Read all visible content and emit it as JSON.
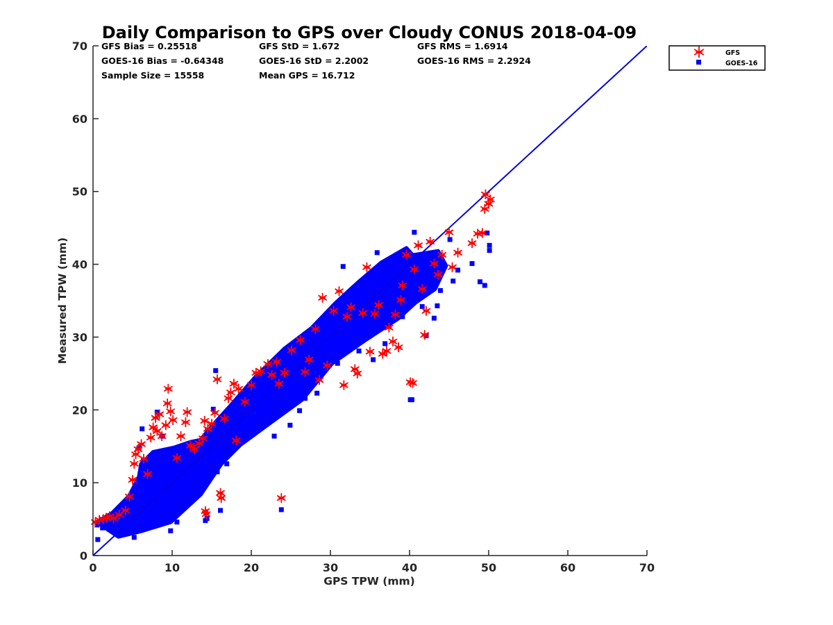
{
  "chart_data": {
    "type": "scatter",
    "title": "Daily Comparison to GPS over Cloudy CONUS 2018-04-09",
    "xlabel": "GPS TPW (mm)",
    "ylabel": "Measured TPW (mm)",
    "xlim": [
      0,
      70
    ],
    "ylim": [
      0,
      70
    ],
    "xticks": [
      "0",
      "10",
      "20",
      "30",
      "40",
      "50",
      "60",
      "70"
    ],
    "yticks": [
      "0",
      "10",
      "20",
      "30",
      "40",
      "50",
      "60",
      "70"
    ],
    "grid": false,
    "legend_position": "top-right-outside",
    "reference_line": {
      "x": [
        0,
        70
      ],
      "y": [
        0,
        70
      ],
      "color": "#0000e0"
    },
    "stats": [
      "GFS Bias = 0.25518",
      "GFS StD = 1.672",
      "GFS RMS = 1.6914",
      "GOES-16 Bias = -0.64348",
      "GOES-16 StD = 2.2002",
      "GOES-16 RMS = 2.2924",
      "Sample Size = 15558",
      "Mean GPS = 16.712"
    ],
    "series": [
      {
        "name": "GFS",
        "marker": "asterisk",
        "color": "#ff0000",
        "points": [
          [
            0.3,
            4.6
          ],
          [
            0.8,
            4.9
          ],
          [
            1.3,
            5.0
          ],
          [
            1.7,
            5.2
          ],
          [
            2.1,
            5.4
          ],
          [
            2.6,
            5.1
          ],
          [
            3.3,
            5.6
          ],
          [
            4.1,
            6.2
          ],
          [
            4.6,
            8.1
          ],
          [
            5.0,
            10.4
          ],
          [
            5.2,
            12.6
          ],
          [
            5.4,
            13.9
          ],
          [
            5.7,
            14.6
          ],
          [
            6.1,
            15.3
          ],
          [
            6.4,
            13.3
          ],
          [
            6.9,
            11.2
          ],
          [
            7.3,
            16.2
          ],
          [
            7.6,
            17.6
          ],
          [
            7.9,
            18.9
          ],
          [
            8.1,
            17.1
          ],
          [
            8.4,
            19.4
          ],
          [
            8.7,
            16.4
          ],
          [
            9.2,
            17.9
          ],
          [
            9.4,
            20.9
          ],
          [
            9.5,
            22.9
          ],
          [
            9.8,
            19.8
          ],
          [
            10.1,
            18.6
          ],
          [
            10.6,
            13.4
          ],
          [
            11.1,
            16.4
          ],
          [
            11.7,
            18.3
          ],
          [
            11.9,
            19.7
          ],
          [
            12.3,
            15.1
          ],
          [
            12.8,
            14.6
          ],
          [
            13.4,
            15.4
          ],
          [
            13.9,
            16.1
          ],
          [
            14.1,
            18.5
          ],
          [
            14.2,
            6.1
          ],
          [
            14.3,
            5.7
          ],
          [
            14.5,
            17.4
          ],
          [
            15.0,
            18.1
          ],
          [
            15.4,
            19.6
          ],
          [
            15.7,
            24.2
          ],
          [
            16.1,
            8.6
          ],
          [
            16.2,
            7.9
          ],
          [
            16.6,
            18.8
          ],
          [
            17.1,
            21.6
          ],
          [
            17.4,
            22.4
          ],
          [
            17.8,
            23.6
          ],
          [
            18.1,
            15.8
          ],
          [
            18.4,
            22.9
          ],
          [
            19.2,
            21.1
          ],
          [
            20.0,
            23.4
          ],
          [
            20.6,
            25.1
          ],
          [
            21.2,
            25.3
          ],
          [
            22.1,
            26.3
          ],
          [
            22.6,
            24.8
          ],
          [
            23.2,
            26.6
          ],
          [
            23.5,
            23.6
          ],
          [
            23.8,
            7.9
          ],
          [
            24.2,
            25.1
          ],
          [
            25.1,
            28.2
          ],
          [
            26.2,
            29.6
          ],
          [
            26.8,
            25.2
          ],
          [
            27.3,
            26.9
          ],
          [
            28.1,
            31.1
          ],
          [
            28.6,
            24.1
          ],
          [
            29.0,
            35.4
          ],
          [
            29.6,
            26.1
          ],
          [
            30.4,
            33.6
          ],
          [
            31.1,
            36.3
          ],
          [
            31.7,
            23.4
          ],
          [
            32.1,
            32.8
          ],
          [
            32.6,
            34.1
          ],
          [
            33.1,
            25.6
          ],
          [
            33.4,
            25.0
          ],
          [
            34.1,
            33.3
          ],
          [
            34.6,
            39.6
          ],
          [
            35.0,
            28.0
          ],
          [
            35.6,
            33.2
          ],
          [
            36.1,
            34.4
          ],
          [
            36.6,
            27.7
          ],
          [
            37.1,
            28.1
          ],
          [
            37.4,
            31.3
          ],
          [
            37.9,
            29.4
          ],
          [
            38.2,
            33.1
          ],
          [
            38.6,
            28.6
          ],
          [
            38.9,
            35.1
          ],
          [
            39.1,
            37.1
          ],
          [
            39.6,
            41.3
          ],
          [
            40.1,
            23.8
          ],
          [
            40.4,
            23.7
          ],
          [
            40.6,
            39.3
          ],
          [
            41.1,
            42.6
          ],
          [
            41.6,
            36.6
          ],
          [
            41.9,
            30.3
          ],
          [
            42.1,
            33.6
          ],
          [
            42.6,
            43.1
          ],
          [
            43.1,
            40.1
          ],
          [
            43.6,
            38.6
          ],
          [
            44.1,
            41.3
          ],
          [
            45.0,
            44.4
          ],
          [
            45.4,
            39.6
          ],
          [
            46.1,
            41.6
          ],
          [
            47.9,
            42.9
          ],
          [
            48.6,
            44.2
          ],
          [
            49.2,
            44.3
          ],
          [
            49.5,
            47.6
          ],
          [
            49.6,
            49.6
          ],
          [
            50.0,
            48.3
          ],
          [
            50.2,
            48.9
          ]
        ]
      },
      {
        "name": "GOES-16",
        "marker": "square",
        "color": "#0000ff",
        "points": [
          [
            0.5,
            4.2
          ],
          [
            0.6,
            2.2
          ],
          [
            1.2,
            3.8
          ],
          [
            2.0,
            4.1
          ],
          [
            2.8,
            3.2
          ],
          [
            3.5,
            4.6
          ],
          [
            4.0,
            3.9
          ],
          [
            4.6,
            4.8
          ],
          [
            5.2,
            2.5
          ],
          [
            5.4,
            7.3
          ],
          [
            5.6,
            9.8
          ],
          [
            5.8,
            14.8
          ],
          [
            6.2,
            17.4
          ],
          [
            6.4,
            7.8
          ],
          [
            6.6,
            11.6
          ],
          [
            7.2,
            4.4
          ],
          [
            7.6,
            12.4
          ],
          [
            8.1,
            19.7
          ],
          [
            8.3,
            8.7
          ],
          [
            8.8,
            16.4
          ],
          [
            9.3,
            11.6
          ],
          [
            9.8,
            3.4
          ],
          [
            10.2,
            14.4
          ],
          [
            10.6,
            4.6
          ],
          [
            11.2,
            12.7
          ],
          [
            11.9,
            9.9
          ],
          [
            12.6,
            14.2
          ],
          [
            13.1,
            9.1
          ],
          [
            13.7,
            12.3
          ],
          [
            14.2,
            4.8
          ],
          [
            14.4,
            5.1
          ],
          [
            14.8,
            13.8
          ],
          [
            15.2,
            20.1
          ],
          [
            15.5,
            25.4
          ],
          [
            15.7,
            11.5
          ],
          [
            16.1,
            6.2
          ],
          [
            16.4,
            14.4
          ],
          [
            16.9,
            12.6
          ],
          [
            17.4,
            19.2
          ],
          [
            17.9,
            15.9
          ],
          [
            18.6,
            17.1
          ],
          [
            19.4,
            20.3
          ],
          [
            20.1,
            18.4
          ],
          [
            20.6,
            22.6
          ],
          [
            21.1,
            24.9
          ],
          [
            21.6,
            19.9
          ],
          [
            22.4,
            22.3
          ],
          [
            22.9,
            16.4
          ],
          [
            23.4,
            20.6
          ],
          [
            23.8,
            6.3
          ],
          [
            24.4,
            21.4
          ],
          [
            24.9,
            17.9
          ],
          [
            25.6,
            24.1
          ],
          [
            26.1,
            19.9
          ],
          [
            26.8,
            21.6
          ],
          [
            27.6,
            26.1
          ],
          [
            28.3,
            22.3
          ],
          [
            29.1,
            29.4
          ],
          [
            29.6,
            27.1
          ],
          [
            30.4,
            31.6
          ],
          [
            30.9,
            26.4
          ],
          [
            31.6,
            39.7
          ],
          [
            32.1,
            28.4
          ],
          [
            32.9,
            30.2
          ],
          [
            33.6,
            28.1
          ],
          [
            34.2,
            34.6
          ],
          [
            34.9,
            36.9
          ],
          [
            35.4,
            26.9
          ],
          [
            35.9,
            41.6
          ],
          [
            36.4,
            32.3
          ],
          [
            36.9,
            29.1
          ],
          [
            37.6,
            37.6
          ],
          [
            38.1,
            33.9
          ],
          [
            38.7,
            34.5
          ],
          [
            39.1,
            32.8
          ],
          [
            39.6,
            38.6
          ],
          [
            40.1,
            21.4
          ],
          [
            40.3,
            21.4
          ],
          [
            40.6,
            44.4
          ],
          [
            41.1,
            39.6
          ],
          [
            41.6,
            34.2
          ],
          [
            42.1,
            30.2
          ],
          [
            42.4,
            41.4
          ],
          [
            42.8,
            37.2
          ],
          [
            43.1,
            32.6
          ],
          [
            43.5,
            34.3
          ],
          [
            43.9,
            36.4
          ],
          [
            44.4,
            39.9
          ],
          [
            45.1,
            43.4
          ],
          [
            45.5,
            37.7
          ],
          [
            46.1,
            39.2
          ],
          [
            47.9,
            40.1
          ],
          [
            48.9,
            37.6
          ],
          [
            49.5,
            37.1
          ],
          [
            49.8,
            44.3
          ],
          [
            50.1,
            42.6
          ],
          [
            50.1,
            41.9
          ]
        ]
      }
    ],
    "dense_regions": [
      {
        "series": "GOES-16",
        "poly": [
          [
            0.5,
            4.6
          ],
          [
            3.2,
            2.6
          ],
          [
            6.2,
            3.4
          ],
          [
            9.8,
            4.6
          ],
          [
            13.6,
            8.4
          ],
          [
            16.2,
            12.6
          ],
          [
            18.6,
            15.2
          ],
          [
            22.6,
            18.4
          ],
          [
            26.4,
            21.4
          ],
          [
            30.2,
            26.4
          ],
          [
            34.4,
            29.6
          ],
          [
            38.6,
            32.6
          ],
          [
            41.6,
            35.6
          ],
          [
            42.4,
            38.8
          ],
          [
            39.6,
            42.2
          ],
          [
            36.4,
            40.2
          ],
          [
            33.4,
            37.4
          ],
          [
            30.6,
            34.6
          ],
          [
            27.6,
            31.2
          ],
          [
            24.2,
            28.4
          ],
          [
            20.6,
            24.6
          ],
          [
            17.4,
            20.6
          ],
          [
            15.4,
            18.2
          ],
          [
            13.2,
            15.4
          ],
          [
            10.4,
            13.4
          ],
          [
            8.2,
            12.6
          ],
          [
            6.2,
            11.6
          ],
          [
            4.6,
            8.2
          ],
          [
            2.4,
            5.8
          ]
        ]
      },
      {
        "series": "GOES-16",
        "poly": [
          [
            5.6,
            9.4
          ],
          [
            8.2,
            10.4
          ],
          [
            10.4,
            9.8
          ],
          [
            12.6,
            12.4
          ],
          [
            14.6,
            13.8
          ],
          [
            15.2,
            16.2
          ],
          [
            12.4,
            15.6
          ],
          [
            10.2,
            14.8
          ],
          [
            7.6,
            14.2
          ],
          [
            6.1,
            12.6
          ]
        ]
      },
      {
        "series": "GOES-16",
        "poly": [
          [
            37.8,
            33.8
          ],
          [
            40.8,
            34.8
          ],
          [
            43.2,
            36.6
          ],
          [
            44.6,
            39.8
          ],
          [
            43.6,
            41.8
          ],
          [
            40.2,
            41.2
          ],
          [
            38.1,
            38.4
          ]
        ]
      }
    ]
  }
}
